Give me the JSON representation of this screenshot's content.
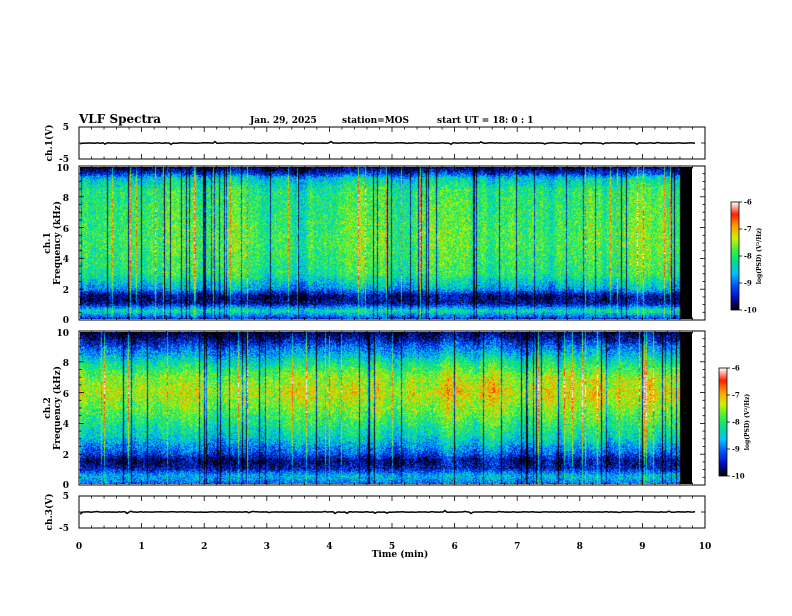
{
  "header": {
    "title": "VLF Spectra",
    "date": "Jan. 29, 2025",
    "station": "station=MOS",
    "start": "start UT =  18: 0  : 1"
  },
  "colorbar_label": "log(PSD) (V²/Hz)",
  "colormap": [
    "#000000",
    "#0010c0",
    "#0050ff",
    "#00c0ff",
    "#00e090",
    "#40f040",
    "#d0f000",
    "#ffa000",
    "#ff2000",
    "#ffffff"
  ],
  "chart_data": [
    {
      "type": "line",
      "name": "ch1-voltage",
      "ylabel": "ch.1(V)",
      "ylim": [
        -5,
        5
      ],
      "yticks": [
        5,
        -5
      ],
      "xlim": [
        0,
        10
      ],
      "level": 0
    },
    {
      "type": "heatmap",
      "name": "ch1-spectrogram",
      "ylabel": "ch.1\nFrequency (kHz)",
      "ylim": [
        0,
        10
      ],
      "yticks": [
        0,
        2,
        4,
        6,
        8,
        10
      ],
      "xlim": [
        0,
        10
      ],
      "data_end_min": 9.8,
      "colorbar": {
        "range": [
          -10,
          -6
        ],
        "ticks": [
          -6,
          -7,
          -8,
          -9,
          -10
        ]
      },
      "profile_freq_khz": [
        0,
        0.5,
        1.0,
        1.5,
        2.0,
        3.0,
        5.0,
        7.0,
        8.5,
        9.3,
        9.6,
        10.0
      ],
      "profile_log_psd": [
        -9.3,
        -8.2,
        -9.6,
        -9.7,
        -8.7,
        -8.0,
        -7.8,
        -7.9,
        -8.0,
        -8.5,
        -9.3,
        -9.9
      ]
    },
    {
      "type": "heatmap",
      "name": "ch2-spectrogram",
      "ylabel": "ch.2\nFrequency (kHz)",
      "ylim": [
        0,
        10
      ],
      "yticks": [
        0,
        2,
        4,
        6,
        8,
        10
      ],
      "xlim": [
        0,
        10
      ],
      "data_end_min": 9.8,
      "colorbar": {
        "range": [
          -10,
          -6
        ],
        "ticks": [
          -6,
          -7,
          -8,
          -9,
          -10
        ]
      },
      "profile_freq_khz": [
        0,
        0.5,
        1.0,
        1.5,
        2.0,
        3.0,
        4.0,
        5.0,
        6.0,
        7.0,
        8.0,
        9.0,
        9.6,
        10.0
      ],
      "profile_log_psd": [
        -9.0,
        -8.6,
        -9.5,
        -9.7,
        -9.1,
        -8.4,
        -8.0,
        -7.6,
        -7.3,
        -7.5,
        -8.2,
        -9.0,
        -9.6,
        -9.9
      ]
    },
    {
      "type": "line",
      "name": "ch3-voltage",
      "ylabel": "ch.3(V)",
      "ylim": [
        -5,
        5
      ],
      "yticks": [
        5,
        -5
      ],
      "xlim": [
        0,
        10
      ],
      "level": 0,
      "xlabel": "Time (min)",
      "xticks": [
        0,
        1,
        2,
        3,
        4,
        5,
        6,
        7,
        8,
        9,
        10
      ]
    }
  ]
}
